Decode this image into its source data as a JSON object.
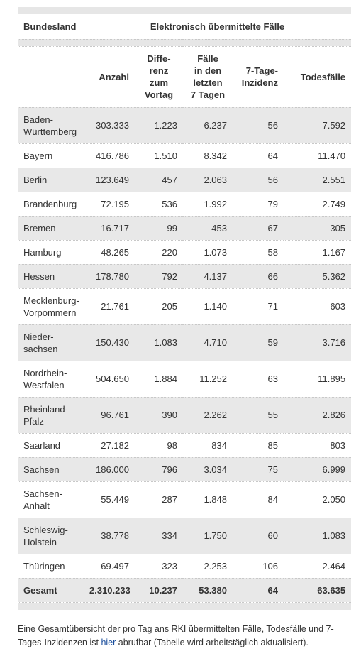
{
  "table": {
    "header_top": [
      "Bundesland",
      "Elektronisch übermittelte Fälle"
    ],
    "columns": [
      [],
      [
        "Anzahl"
      ],
      [
        "Diffe-",
        "renz",
        "zum",
        "Vortag"
      ],
      [
        "Fälle",
        "in den",
        "letzten",
        "7 Tagen"
      ],
      [
        "7-Tage-",
        "Inzidenz"
      ],
      [
        "Todesfälle"
      ]
    ],
    "rows": [
      [
        [
          "Baden-",
          "Württemberg"
        ],
        "303.333",
        "1.223",
        "6.237",
        "56",
        "7.592"
      ],
      [
        [
          "Bayern"
        ],
        "416.786",
        "1.510",
        "8.342",
        "64",
        "11.470"
      ],
      [
        [
          "Berlin"
        ],
        "123.649",
        "457",
        "2.063",
        "56",
        "2.551"
      ],
      [
        [
          "Brandenburg"
        ],
        "72.195",
        "536",
        "1.992",
        "79",
        "2.749"
      ],
      [
        [
          "Bremen"
        ],
        "16.717",
        "99",
        "453",
        "67",
        "305"
      ],
      [
        [
          "Hamburg"
        ],
        "48.265",
        "220",
        "1.073",
        "58",
        "1.167"
      ],
      [
        [
          "Hessen"
        ],
        "178.780",
        "792",
        "4.137",
        "66",
        "5.362"
      ],
      [
        [
          "Mecklenburg-",
          "Vorpommern"
        ],
        "21.761",
        "205",
        "1.140",
        "71",
        "603"
      ],
      [
        [
          "Nieder-",
          "sachsen"
        ],
        "150.430",
        "1.083",
        "4.710",
        "59",
        "3.716"
      ],
      [
        [
          "Nordrhein-",
          "Westfalen"
        ],
        "504.650",
        "1.884",
        "11.252",
        "63",
        "11.895"
      ],
      [
        [
          "Rheinland-",
          "Pfalz"
        ],
        "96.761",
        "390",
        "2.262",
        "55",
        "2.826"
      ],
      [
        [
          "Saarland"
        ],
        "27.182",
        "98",
        "834",
        "85",
        "803"
      ],
      [
        [
          "Sachsen"
        ],
        "186.000",
        "796",
        "3.034",
        "75",
        "6.999"
      ],
      [
        [
          "Sachsen-",
          "Anhalt"
        ],
        "55.449",
        "287",
        "1.848",
        "84",
        "2.050"
      ],
      [
        [
          "Schleswig-",
          "Holstein"
        ],
        "38.778",
        "334",
        "1.750",
        "60",
        "1.083"
      ],
      [
        [
          "Thüringen"
        ],
        "69.497",
        "323",
        "2.253",
        "106",
        "2.464"
      ]
    ],
    "total": [
      [
        "Gesamt"
      ],
      "2.310.233",
      "10.237",
      "53.380",
      "64",
      "63.635"
    ]
  },
  "footnote": {
    "before": "Eine Gesamtübersicht der pro Tag ans RKI übermittelten Fälle, Todesfälle und 7-Tages-Inzidenzen ist ",
    "link": "hier",
    "after": " abrufbar (Tabelle wird arbeitstäglich aktualisiert)."
  }
}
